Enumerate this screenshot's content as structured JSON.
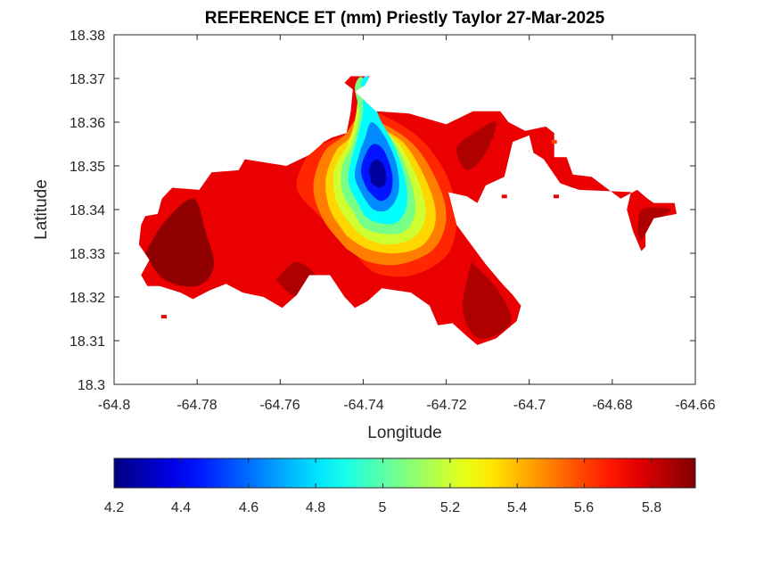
{
  "chart_data": {
    "type": "heatmap",
    "title": "REFERENCE ET (mm) Priestly Taylor 27-Mar-2025",
    "xlabel": "Longitude",
    "ylabel": "Latitude",
    "xlim": [
      -64.8,
      -64.66
    ],
    "ylim": [
      18.3,
      18.38
    ],
    "xticks": [
      "-64.8",
      "-64.78",
      "-64.76",
      "-64.74",
      "-64.72",
      "-64.7",
      "-64.68",
      "-64.66"
    ],
    "yticks": [
      "18.3",
      "18.31",
      "18.32",
      "18.33",
      "18.34",
      "18.35",
      "18.36",
      "18.37",
      "18.38"
    ],
    "grid": false,
    "colormap": "jet",
    "colorbar": {
      "orientation": "horizontal",
      "placement": "bottom",
      "range": [
        4.2,
        5.93
      ],
      "ticks": [
        "4.2",
        "4.4",
        "4.6",
        "4.8",
        "5",
        "5.2",
        "5.4",
        "5.6",
        "5.8"
      ]
    },
    "land_outline": [
      [
        -64.7935,
        18.3365
      ],
      [
        -64.7925,
        18.3385
      ],
      [
        -64.7895,
        18.339
      ],
      [
        -64.7885,
        18.3425
      ],
      [
        -64.786,
        18.345
      ],
      [
        -64.7795,
        18.3445
      ],
      [
        -64.7765,
        18.3485
      ],
      [
        -64.77,
        18.349
      ],
      [
        -64.7685,
        18.3515
      ],
      [
        -64.7585,
        18.35
      ],
      [
        -64.753,
        18.3525
      ],
      [
        -64.7505,
        18.3545
      ],
      [
        -64.7495,
        18.3555
      ],
      [
        -64.7475,
        18.3565
      ],
      [
        -64.744,
        18.3575
      ],
      [
        -64.743,
        18.3625
      ],
      [
        -64.7425,
        18.3675
      ],
      [
        -64.7445,
        18.369
      ],
      [
        -64.743,
        18.3705
      ],
      [
        -64.7385,
        18.3705
      ],
      [
        -64.7395,
        18.3685
      ],
      [
        -64.742,
        18.367
      ],
      [
        -64.737,
        18.3625
      ],
      [
        -64.729,
        18.362
      ],
      [
        -64.72,
        18.3595
      ],
      [
        -64.7135,
        18.3625
      ],
      [
        -64.707,
        18.3625
      ],
      [
        -64.705,
        18.36
      ],
      [
        -64.701,
        18.358
      ],
      [
        -64.696,
        18.359
      ],
      [
        -64.694,
        18.3575
      ],
      [
        -64.694,
        18.352
      ],
      [
        -64.691,
        18.352
      ],
      [
        -64.6895,
        18.348
      ],
      [
        -64.685,
        18.3475
      ],
      [
        -64.678,
        18.3425
      ],
      [
        -64.674,
        18.3445
      ],
      [
        -64.6715,
        18.3425
      ],
      [
        -64.67,
        18.3415
      ],
      [
        -64.665,
        18.3415
      ],
      [
        -64.6645,
        18.339
      ],
      [
        -64.67,
        18.338
      ],
      [
        -64.672,
        18.3345
      ],
      [
        -64.672,
        18.3315
      ],
      [
        -64.673,
        18.3305
      ],
      [
        -64.675,
        18.335
      ],
      [
        -64.6765,
        18.34
      ],
      [
        -64.6755,
        18.344
      ],
      [
        -64.688,
        18.3445
      ],
      [
        -64.6925,
        18.346
      ],
      [
        -64.6965,
        18.3515
      ],
      [
        -64.699,
        18.353
      ],
      [
        -64.7,
        18.357
      ],
      [
        -64.704,
        18.3555
      ],
      [
        -64.706,
        18.3475
      ],
      [
        -64.7105,
        18.3455
      ],
      [
        -64.7125,
        18.3415
      ],
      [
        -64.715,
        18.343
      ],
      [
        -64.7195,
        18.344
      ],
      [
        -64.7175,
        18.3365
      ],
      [
        -64.714,
        18.332
      ],
      [
        -64.7105,
        18.3275
      ],
      [
        -64.7065,
        18.323
      ],
      [
        -64.704,
        18.3205
      ],
      [
        -64.702,
        18.318
      ],
      [
        -64.703,
        18.3145
      ],
      [
        -64.7055,
        18.3125
      ],
      [
        -64.708,
        18.3105
      ],
      [
        -64.7125,
        18.309
      ],
      [
        -64.715,
        18.311
      ],
      [
        -64.7185,
        18.314
      ],
      [
        -64.722,
        18.3135
      ],
      [
        -64.724,
        18.318
      ],
      [
        -64.7285,
        18.321
      ],
      [
        -64.7355,
        18.322
      ],
      [
        -64.739,
        18.319
      ],
      [
        -64.742,
        18.3175
      ],
      [
        -64.7445,
        18.32
      ],
      [
        -64.748,
        18.325
      ],
      [
        -64.753,
        18.325
      ],
      [
        -64.756,
        18.3205
      ],
      [
        -64.7595,
        18.3175
      ],
      [
        -64.764,
        18.32
      ],
      [
        -64.769,
        18.321
      ],
      [
        -64.773,
        18.323
      ],
      [
        -64.777,
        18.3215
      ],
      [
        -64.781,
        18.3195
      ],
      [
        -64.784,
        18.321
      ],
      [
        -64.789,
        18.3225
      ],
      [
        -64.792,
        18.3225
      ],
      [
        -64.7935,
        18.325
      ],
      [
        -64.7915,
        18.3285
      ],
      [
        -64.794,
        18.332
      ],
      [
        -64.7935,
        18.3365
      ]
    ],
    "et_contours": [
      {
        "level": 5.9,
        "outline": [
          [
            -64.7925,
            18.33
          ],
          [
            -64.788,
            18.337
          ],
          [
            -64.781,
            18.3425
          ],
          [
            -64.778,
            18.335
          ],
          [
            -64.776,
            18.327
          ],
          [
            -64.78,
            18.3225
          ],
          [
            -64.788,
            18.324
          ],
          [
            -64.7925,
            18.33
          ]
        ]
      },
      {
        "level": 5.85,
        "outline": [
          [
            -64.761,
            18.324
          ],
          [
            -64.756,
            18.328
          ],
          [
            -64.751,
            18.324
          ],
          [
            -64.756,
            18.32
          ],
          [
            -64.761,
            18.324
          ]
        ]
      },
      {
        "level": 5.85,
        "outline": [
          [
            -64.714,
            18.328
          ],
          [
            -64.7075,
            18.3215
          ],
          [
            -64.7045,
            18.314
          ],
          [
            -64.712,
            18.3105
          ],
          [
            -64.716,
            18.317
          ],
          [
            -64.714,
            18.328
          ]
        ]
      },
      {
        "level": 5.85,
        "outline": [
          [
            -64.7135,
            18.3575
          ],
          [
            -64.7175,
            18.354
          ],
          [
            -64.715,
            18.349
          ],
          [
            -64.7105,
            18.353
          ],
          [
            -64.708,
            18.36
          ],
          [
            -64.7135,
            18.3575
          ]
        ]
      },
      {
        "level": 5.85,
        "outline": [
          [
            -64.6715,
            18.3405
          ],
          [
            -64.666,
            18.34
          ],
          [
            -64.67,
            18.337
          ],
          [
            -64.6735,
            18.333
          ],
          [
            -64.6735,
            18.339
          ],
          [
            -64.6715,
            18.3405
          ]
        ]
      },
      {
        "level": 5.65,
        "outline": [
          [
            -64.742,
            18.33
          ],
          [
            -64.75,
            18.338
          ],
          [
            -64.756,
            18.345
          ],
          [
            -64.753,
            18.353
          ],
          [
            -64.75,
            18.355
          ],
          [
            -64.744,
            18.3575
          ],
          [
            -64.74,
            18.3625
          ],
          [
            -64.734,
            18.361
          ],
          [
            -64.726,
            18.356
          ],
          [
            -64.72,
            18.348
          ],
          [
            -64.7175,
            18.339
          ],
          [
            -64.7195,
            18.33
          ],
          [
            -64.728,
            18.325
          ],
          [
            -64.737,
            18.3255
          ],
          [
            -64.742,
            18.33
          ]
        ]
      },
      {
        "level": 5.5,
        "outline": [
          [
            -64.744,
            18.331
          ],
          [
            -64.7495,
            18.3375
          ],
          [
            -64.752,
            18.345
          ],
          [
            -64.7495,
            18.353
          ],
          [
            -64.7445,
            18.357
          ],
          [
            -64.741,
            18.361
          ],
          [
            -64.735,
            18.3595
          ],
          [
            -64.7275,
            18.3545
          ],
          [
            -64.722,
            18.346
          ],
          [
            -64.72,
            18.338
          ],
          [
            -64.723,
            18.331
          ],
          [
            -64.731,
            18.3275
          ],
          [
            -64.7385,
            18.328
          ],
          [
            -64.744,
            18.331
          ]
        ]
      },
      {
        "level": 5.35,
        "outline": [
          [
            -64.744,
            18.334
          ],
          [
            -64.748,
            18.34
          ],
          [
            -64.749,
            18.347
          ],
          [
            -64.7465,
            18.3535
          ],
          [
            -64.743,
            18.357
          ],
          [
            -64.741,
            18.365
          ],
          [
            -64.739,
            18.368
          ],
          [
            -64.737,
            18.36
          ],
          [
            -64.73,
            18.355
          ],
          [
            -64.7245,
            18.346
          ],
          [
            -64.7225,
            18.338
          ],
          [
            -64.7255,
            18.332
          ],
          [
            -64.732,
            18.33
          ],
          [
            -64.739,
            18.331
          ],
          [
            -64.744,
            18.334
          ]
        ]
      },
      {
        "level": 5.2,
        "outline": [
          [
            -64.743,
            18.3365
          ],
          [
            -64.7465,
            18.342
          ],
          [
            -64.747,
            18.349
          ],
          [
            -64.744,
            18.3545
          ],
          [
            -64.742,
            18.36
          ],
          [
            -64.741,
            18.367
          ],
          [
            -64.7395,
            18.369
          ],
          [
            -64.7365,
            18.36
          ],
          [
            -64.731,
            18.3545
          ],
          [
            -64.7265,
            18.346
          ],
          [
            -64.725,
            18.3385
          ],
          [
            -64.728,
            18.3335
          ],
          [
            -64.734,
            18.332
          ],
          [
            -64.7395,
            18.3335
          ],
          [
            -64.743,
            18.3365
          ]
        ]
      },
      {
        "level": 5.05,
        "outline": [
          [
            -64.742,
            18.339
          ],
          [
            -64.745,
            18.344
          ],
          [
            -64.745,
            18.35
          ],
          [
            -64.7425,
            18.355
          ],
          [
            -64.741,
            18.362
          ],
          [
            -64.742,
            18.368
          ],
          [
            -64.74,
            18.37
          ],
          [
            -64.737,
            18.361
          ],
          [
            -64.732,
            18.3545
          ],
          [
            -64.7285,
            18.3465
          ],
          [
            -64.7275,
            18.3395
          ],
          [
            -64.73,
            18.335
          ],
          [
            -64.7355,
            18.3345
          ],
          [
            -64.74,
            18.336
          ],
          [
            -64.742,
            18.339
          ]
        ]
      },
      {
        "level": 4.85,
        "outline": [
          [
            -64.741,
            18.341
          ],
          [
            -64.7435,
            18.346
          ],
          [
            -64.743,
            18.351
          ],
          [
            -64.7415,
            18.356
          ],
          [
            -64.74,
            18.363
          ],
          [
            -64.7405,
            18.369
          ],
          [
            -64.7385,
            18.37
          ],
          [
            -64.7365,
            18.362
          ],
          [
            -64.733,
            18.3555
          ],
          [
            -64.73,
            18.3475
          ],
          [
            -64.7295,
            18.341
          ],
          [
            -64.732,
            18.337
          ],
          [
            -64.7365,
            18.337
          ],
          [
            -64.7395,
            18.3385
          ],
          [
            -64.741,
            18.341
          ]
        ]
      },
      {
        "level": 4.65,
        "outline": [
          [
            -64.74,
            18.343
          ],
          [
            -64.742,
            18.3475
          ],
          [
            -64.741,
            18.3525
          ],
          [
            -64.7395,
            18.3565
          ],
          [
            -64.738,
            18.36
          ],
          [
            -64.735,
            18.357
          ],
          [
            -64.732,
            18.3505
          ],
          [
            -64.7315,
            18.344
          ],
          [
            -64.734,
            18.34
          ],
          [
            -64.7375,
            18.34
          ],
          [
            -64.74,
            18.343
          ]
        ]
      },
      {
        "level": 4.45,
        "outline": [
          [
            -64.739,
            18.3445
          ],
          [
            -64.7405,
            18.3485
          ],
          [
            -64.7395,
            18.3525
          ],
          [
            -64.7375,
            18.355
          ],
          [
            -64.735,
            18.3535
          ],
          [
            -64.733,
            18.348
          ],
          [
            -64.7335,
            18.3435
          ],
          [
            -64.736,
            18.342
          ],
          [
            -64.739,
            18.3445
          ]
        ]
      },
      {
        "level": 4.25,
        "outline": [
          [
            -64.738,
            18.346
          ],
          [
            -64.7385,
            18.3495
          ],
          [
            -64.737,
            18.3515
          ],
          [
            -64.735,
            18.35
          ],
          [
            -64.7345,
            18.3465
          ],
          [
            -64.736,
            18.345
          ],
          [
            -64.738,
            18.346
          ]
        ]
      }
    ],
    "islets": [
      {
        "level": 5.75,
        "center": [
          -64.7905,
          18.3235
        ]
      },
      {
        "level": 5.75,
        "center": [
          -64.788,
          18.3155
        ]
      },
      {
        "level": 5.75,
        "center": [
          -64.706,
          18.343
        ]
      },
      {
        "level": 5.75,
        "center": [
          -64.6935,
          18.343
        ]
      },
      {
        "level": 5.6,
        "center": [
          -64.694,
          18.3555
        ]
      }
    ]
  }
}
